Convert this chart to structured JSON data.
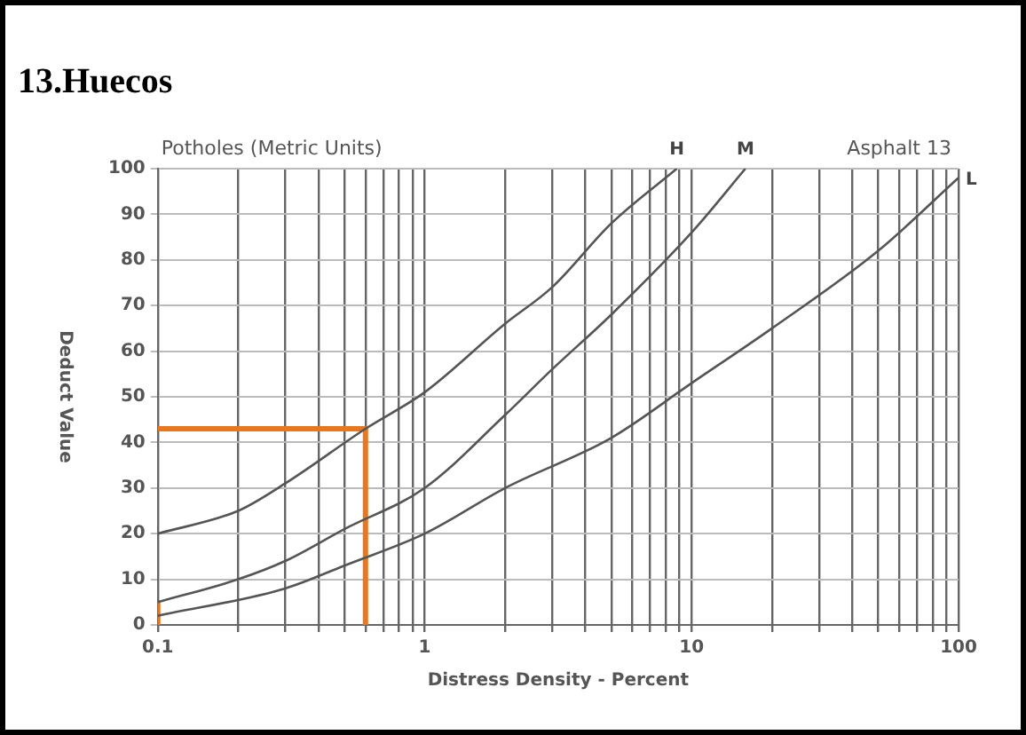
{
  "chart_data": {
    "type": "line",
    "title": "13.Huecos",
    "subtitle": "Potholes (Metric Units)",
    "xlabel": "Distress Density - Percent",
    "ylabel": "Deduct Value",
    "annotations": [
      "Asphalt 13"
    ],
    "log": "x",
    "xlim": [
      0.1,
      100
    ],
    "ylim": [
      0,
      100
    ],
    "xticks": [
      0.1,
      {
        "value": 0.2,
        "label": null
      },
      {
        "value": 0.3,
        "label": null
      },
      {
        "value": 0.4,
        "label": null
      },
      {
        "value": 0.5,
        "label": null
      },
      {
        "value": 0.6,
        "label": null
      },
      {
        "value": 0.7,
        "label": null
      },
      {
        "value": 0.8,
        "label": null
      },
      {
        "value": 0.9,
        "label": null
      },
      1,
      {
        "value": 2,
        "label": null
      },
      {
        "value": 3,
        "label": null
      },
      {
        "value": 4,
        "label": null
      },
      {
        "value": 5,
        "label": null
      },
      {
        "value": 6,
        "label": null
      },
      {
        "value": 7,
        "label": null
      },
      {
        "value": 8,
        "label": null
      },
      {
        "value": 9,
        "label": null
      },
      10,
      {
        "value": 20,
        "label": null
      },
      {
        "value": 30,
        "label": null
      },
      {
        "value": 40,
        "label": null
      },
      {
        "value": 50,
        "label": null
      },
      {
        "value": 60,
        "label": null
      },
      {
        "value": 70,
        "label": null
      },
      {
        "value": 80,
        "label": null
      },
      {
        "value": 90,
        "label": null
      },
      100
    ],
    "yticks": [
      0,
      10,
      20,
      30,
      40,
      50,
      60,
      70,
      80,
      90,
      100
    ],
    "grid": true,
    "legend": false,
    "marker": "none",
    "line_style": "solid",
    "series": [
      {
        "name": "H",
        "color": "#555555",
        "x": [
          0.1,
          0.2,
          0.3,
          0.6,
          1,
          2,
          3,
          5,
          8.8
        ],
        "values": [
          20,
          25,
          31,
          43,
          51,
          66,
          74,
          88,
          100
        ]
      },
      {
        "name": "M",
        "color": "#555555",
        "x": [
          0.1,
          0.2,
          0.3,
          0.5,
          1,
          2,
          3,
          5,
          10,
          15.9
        ],
        "values": [
          5,
          10,
          14,
          21,
          30,
          46,
          56,
          68,
          86,
          100
        ]
      },
      {
        "name": "L",
        "color": "#555555",
        "x": [
          0.1,
          0.3,
          0.5,
          1,
          2,
          5,
          10,
          20,
          50,
          100
        ],
        "values": [
          2,
          8,
          13,
          20,
          30,
          41,
          53,
          65,
          82,
          98
        ]
      },
      {
        "color": "#e87722",
        "x": [
          0.1,
          0.6,
          0.6
        ],
        "values": [
          43,
          43,
          0
        ]
      },
      {
        "color": "#e87722",
        "x": [
          0.1,
          0.1
        ],
        "values": [
          0,
          5
        ]
      }
    ]
  }
}
